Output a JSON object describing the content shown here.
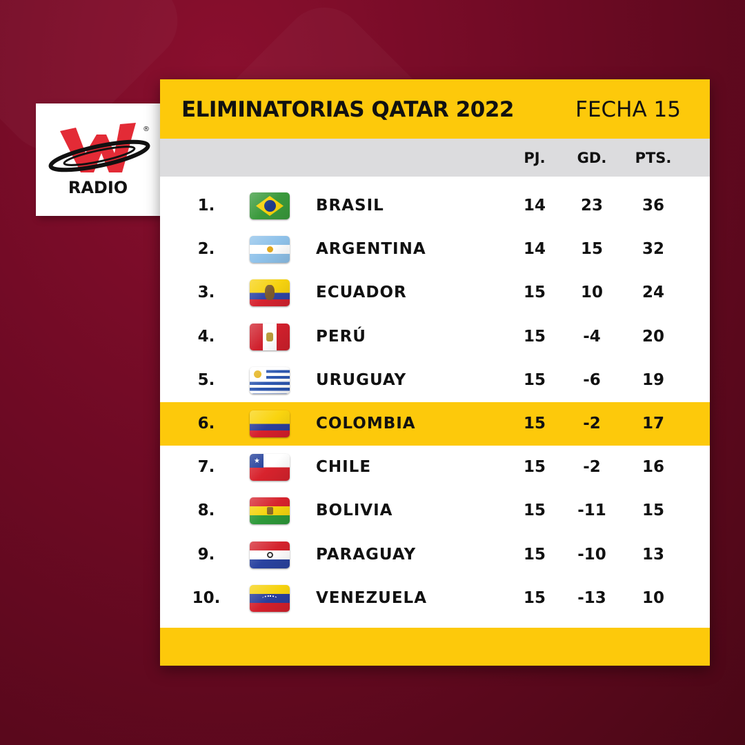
{
  "brand": {
    "name": "W Radio",
    "logo_text": "RADIO",
    "registered": "®",
    "accent": "#e32b36"
  },
  "header": {
    "title": "ELIMINATORIAS QATAR 2022",
    "round": "FECHA 15"
  },
  "columns": {
    "pj": "PJ.",
    "gd": "GD.",
    "pts": "PTS."
  },
  "highlight_color": "#fdc90b",
  "rows": [
    {
      "rank": "1.",
      "flag": "brasil",
      "team": "BRASIL",
      "pj": "14",
      "gd": "23",
      "pts": "36"
    },
    {
      "rank": "2.",
      "flag": "argentina",
      "team": "ARGENTINA",
      "pj": "14",
      "gd": "15",
      "pts": "32"
    },
    {
      "rank": "3.",
      "flag": "ecuador",
      "team": "ECUADOR",
      "pj": "15",
      "gd": "10",
      "pts": "24"
    },
    {
      "rank": "4.",
      "flag": "peru",
      "team": "PERÚ",
      "pj": "15",
      "gd": "-4",
      "pts": "20"
    },
    {
      "rank": "5.",
      "flag": "uruguay",
      "team": "URUGUAY",
      "pj": "15",
      "gd": "-6",
      "pts": "19"
    },
    {
      "rank": "6.",
      "flag": "colombia",
      "team": "COLOMBIA",
      "pj": "15",
      "gd": "-2",
      "pts": "17",
      "highlighted": true
    },
    {
      "rank": "7.",
      "flag": "chile",
      "team": "CHILE",
      "pj": "15",
      "gd": "-2",
      "pts": "16"
    },
    {
      "rank": "8.",
      "flag": "bolivia",
      "team": "BOLIVIA",
      "pj": "15",
      "gd": "-11",
      "pts": "15"
    },
    {
      "rank": "9.",
      "flag": "paraguay",
      "team": "PARAGUAY",
      "pj": "15",
      "gd": "-10",
      "pts": "13"
    },
    {
      "rank": "10.",
      "flag": "venezuela",
      "team": "VENEZUELA",
      "pj": "15",
      "gd": "-13",
      "pts": "10"
    }
  ]
}
